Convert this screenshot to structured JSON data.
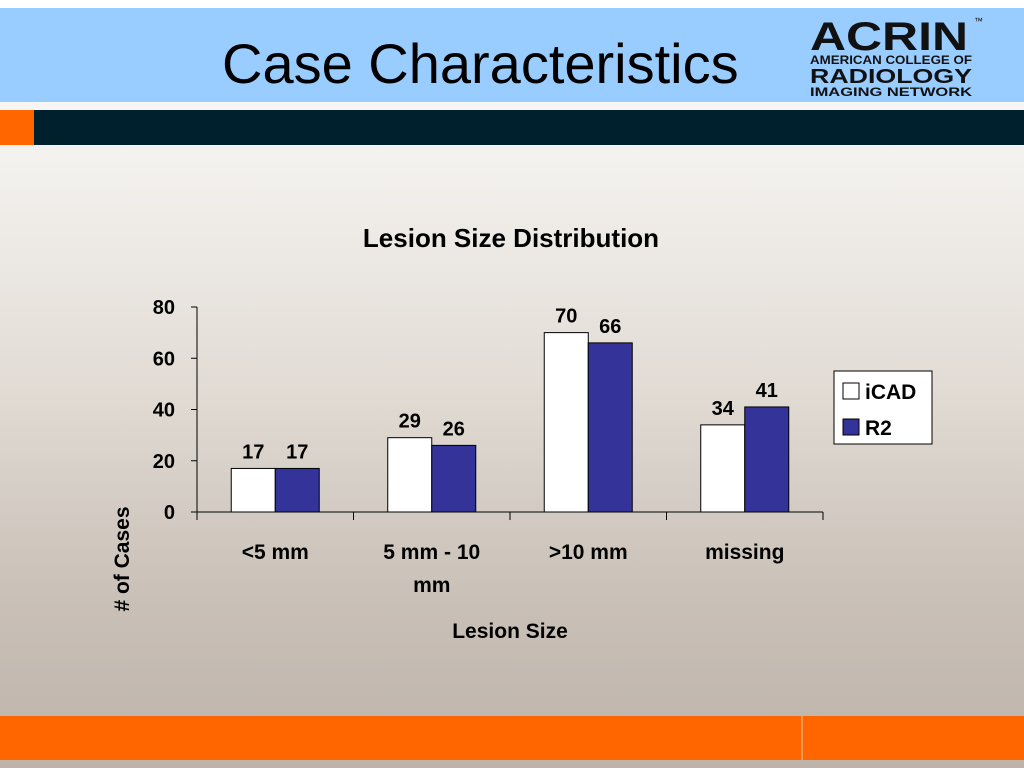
{
  "slide": {
    "title": "Case Characteristics"
  },
  "logo": {
    "wordmark": "ACRIN",
    "tm": "™",
    "line1": "American College of",
    "line2": "RADIOLOGY",
    "line3": "Imaging Network"
  },
  "colors": {
    "header_band": "#99ccff",
    "dark_bar": "#00202e",
    "accent_orange": "#ff6600",
    "series_icad": "#ffffff",
    "series_r2": "#333399"
  },
  "chart_data": {
    "type": "bar",
    "title": "Lesion Size Distribution",
    "xlabel": "Lesion Size",
    "ylabel": "# of Cases",
    "categories": [
      [
        "<5 mm"
      ],
      [
        "5 mm - 10",
        "mm"
      ],
      [
        ">10 mm"
      ],
      [
        "missing"
      ]
    ],
    "series": [
      {
        "name": "iCAD",
        "values": [
          17,
          29,
          70,
          34
        ],
        "color": "#ffffff"
      },
      {
        "name": "R2",
        "values": [
          17,
          26,
          66,
          41
        ],
        "color": "#333399"
      }
    ],
    "ylim": [
      0,
      80
    ],
    "yticks": [
      0,
      20,
      40,
      60,
      80
    ],
    "grid": false,
    "legend": "right"
  }
}
